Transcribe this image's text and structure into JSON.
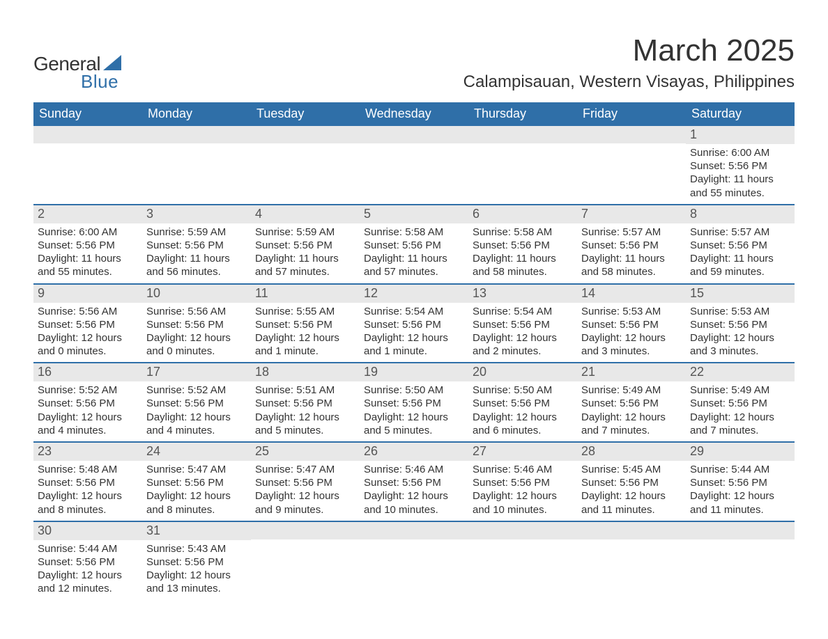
{
  "logo": {
    "text_general": "General",
    "text_blue": "Blue",
    "sail_color": "#2f6fa8"
  },
  "title": {
    "month": "March 2025",
    "location": "Calampisauan, Western Visayas, Philippines"
  },
  "colors": {
    "header_bg": "#2f6fa8",
    "header_text": "#ffffff",
    "daynum_bg": "#e8e8e8",
    "daynum_text": "#555555",
    "body_text": "#333333",
    "row_divider": "#2f6fa8",
    "page_bg": "#ffffff"
  },
  "typography": {
    "month_title_fontsize": 44,
    "location_fontsize": 24,
    "weekday_fontsize": 18,
    "daynum_fontsize": 18,
    "cell_fontsize": 15
  },
  "weekdays": [
    "Sunday",
    "Monday",
    "Tuesday",
    "Wednesday",
    "Thursday",
    "Friday",
    "Saturday"
  ],
  "weeks": [
    [
      {
        "num": "",
        "lines": []
      },
      {
        "num": "",
        "lines": []
      },
      {
        "num": "",
        "lines": []
      },
      {
        "num": "",
        "lines": []
      },
      {
        "num": "",
        "lines": []
      },
      {
        "num": "",
        "lines": []
      },
      {
        "num": "1",
        "lines": [
          "Sunrise: 6:00 AM",
          "Sunset: 5:56 PM",
          "Daylight: 11 hours",
          "and 55 minutes."
        ]
      }
    ],
    [
      {
        "num": "2",
        "lines": [
          "Sunrise: 6:00 AM",
          "Sunset: 5:56 PM",
          "Daylight: 11 hours",
          "and 55 minutes."
        ]
      },
      {
        "num": "3",
        "lines": [
          "Sunrise: 5:59 AM",
          "Sunset: 5:56 PM",
          "Daylight: 11 hours",
          "and 56 minutes."
        ]
      },
      {
        "num": "4",
        "lines": [
          "Sunrise: 5:59 AM",
          "Sunset: 5:56 PM",
          "Daylight: 11 hours",
          "and 57 minutes."
        ]
      },
      {
        "num": "5",
        "lines": [
          "Sunrise: 5:58 AM",
          "Sunset: 5:56 PM",
          "Daylight: 11 hours",
          "and 57 minutes."
        ]
      },
      {
        "num": "6",
        "lines": [
          "Sunrise: 5:58 AM",
          "Sunset: 5:56 PM",
          "Daylight: 11 hours",
          "and 58 minutes."
        ]
      },
      {
        "num": "7",
        "lines": [
          "Sunrise: 5:57 AM",
          "Sunset: 5:56 PM",
          "Daylight: 11 hours",
          "and 58 minutes."
        ]
      },
      {
        "num": "8",
        "lines": [
          "Sunrise: 5:57 AM",
          "Sunset: 5:56 PM",
          "Daylight: 11 hours",
          "and 59 minutes."
        ]
      }
    ],
    [
      {
        "num": "9",
        "lines": [
          "Sunrise: 5:56 AM",
          "Sunset: 5:56 PM",
          "Daylight: 12 hours",
          "and 0 minutes."
        ]
      },
      {
        "num": "10",
        "lines": [
          "Sunrise: 5:56 AM",
          "Sunset: 5:56 PM",
          "Daylight: 12 hours",
          "and 0 minutes."
        ]
      },
      {
        "num": "11",
        "lines": [
          "Sunrise: 5:55 AM",
          "Sunset: 5:56 PM",
          "Daylight: 12 hours",
          "and 1 minute."
        ]
      },
      {
        "num": "12",
        "lines": [
          "Sunrise: 5:54 AM",
          "Sunset: 5:56 PM",
          "Daylight: 12 hours",
          "and 1 minute."
        ]
      },
      {
        "num": "13",
        "lines": [
          "Sunrise: 5:54 AM",
          "Sunset: 5:56 PM",
          "Daylight: 12 hours",
          "and 2 minutes."
        ]
      },
      {
        "num": "14",
        "lines": [
          "Sunrise: 5:53 AM",
          "Sunset: 5:56 PM",
          "Daylight: 12 hours",
          "and 3 minutes."
        ]
      },
      {
        "num": "15",
        "lines": [
          "Sunrise: 5:53 AM",
          "Sunset: 5:56 PM",
          "Daylight: 12 hours",
          "and 3 minutes."
        ]
      }
    ],
    [
      {
        "num": "16",
        "lines": [
          "Sunrise: 5:52 AM",
          "Sunset: 5:56 PM",
          "Daylight: 12 hours",
          "and 4 minutes."
        ]
      },
      {
        "num": "17",
        "lines": [
          "Sunrise: 5:52 AM",
          "Sunset: 5:56 PM",
          "Daylight: 12 hours",
          "and 4 minutes."
        ]
      },
      {
        "num": "18",
        "lines": [
          "Sunrise: 5:51 AM",
          "Sunset: 5:56 PM",
          "Daylight: 12 hours",
          "and 5 minutes."
        ]
      },
      {
        "num": "19",
        "lines": [
          "Sunrise: 5:50 AM",
          "Sunset: 5:56 PM",
          "Daylight: 12 hours",
          "and 5 minutes."
        ]
      },
      {
        "num": "20",
        "lines": [
          "Sunrise: 5:50 AM",
          "Sunset: 5:56 PM",
          "Daylight: 12 hours",
          "and 6 minutes."
        ]
      },
      {
        "num": "21",
        "lines": [
          "Sunrise: 5:49 AM",
          "Sunset: 5:56 PM",
          "Daylight: 12 hours",
          "and 7 minutes."
        ]
      },
      {
        "num": "22",
        "lines": [
          "Sunrise: 5:49 AM",
          "Sunset: 5:56 PM",
          "Daylight: 12 hours",
          "and 7 minutes."
        ]
      }
    ],
    [
      {
        "num": "23",
        "lines": [
          "Sunrise: 5:48 AM",
          "Sunset: 5:56 PM",
          "Daylight: 12 hours",
          "and 8 minutes."
        ]
      },
      {
        "num": "24",
        "lines": [
          "Sunrise: 5:47 AM",
          "Sunset: 5:56 PM",
          "Daylight: 12 hours",
          "and 8 minutes."
        ]
      },
      {
        "num": "25",
        "lines": [
          "Sunrise: 5:47 AM",
          "Sunset: 5:56 PM",
          "Daylight: 12 hours",
          "and 9 minutes."
        ]
      },
      {
        "num": "26",
        "lines": [
          "Sunrise: 5:46 AM",
          "Sunset: 5:56 PM",
          "Daylight: 12 hours",
          "and 10 minutes."
        ]
      },
      {
        "num": "27",
        "lines": [
          "Sunrise: 5:46 AM",
          "Sunset: 5:56 PM",
          "Daylight: 12 hours",
          "and 10 minutes."
        ]
      },
      {
        "num": "28",
        "lines": [
          "Sunrise: 5:45 AM",
          "Sunset: 5:56 PM",
          "Daylight: 12 hours",
          "and 11 minutes."
        ]
      },
      {
        "num": "29",
        "lines": [
          "Sunrise: 5:44 AM",
          "Sunset: 5:56 PM",
          "Daylight: 12 hours",
          "and 11 minutes."
        ]
      }
    ],
    [
      {
        "num": "30",
        "lines": [
          "Sunrise: 5:44 AM",
          "Sunset: 5:56 PM",
          "Daylight: 12 hours",
          "and 12 minutes."
        ]
      },
      {
        "num": "31",
        "lines": [
          "Sunrise: 5:43 AM",
          "Sunset: 5:56 PM",
          "Daylight: 12 hours",
          "and 13 minutes."
        ]
      },
      {
        "num": "",
        "lines": []
      },
      {
        "num": "",
        "lines": []
      },
      {
        "num": "",
        "lines": []
      },
      {
        "num": "",
        "lines": []
      },
      {
        "num": "",
        "lines": []
      }
    ]
  ]
}
